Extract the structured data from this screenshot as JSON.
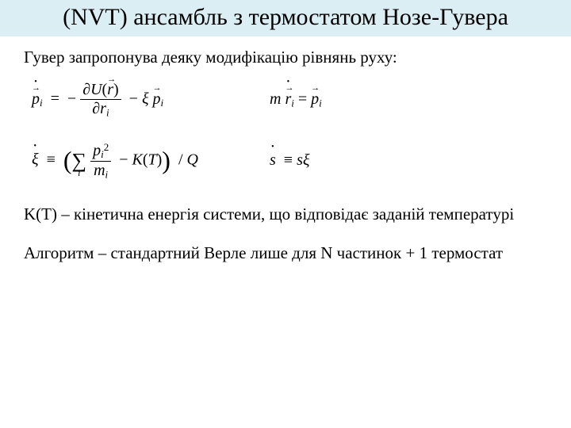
{
  "title": "(NVT) ансамбль з термостатом Нозе-Гувера",
  "intro": "Гувер запропонува деяку модифікацію рівнянь руху:",
  "note": "K(T) – кінетична енергія системи, що відповідає заданій температурі",
  "algo": "Алгоритм – стандартний Верле лише для N частинок + 1 термостат",
  "colors": {
    "titleBand": "#dbeef4",
    "background": "#ffffff",
    "text": "#000000"
  },
  "fonts": {
    "family": "Times New Roman",
    "titleSize": 30,
    "bodySize": 21,
    "eqSize": 20
  },
  "equations": {
    "row1": {
      "left": {
        "lhs": "p_dot_vec_i",
        "rhs_term1": {
          "type": "neg_partial_fraction",
          "num": "∂U(r_vec)",
          "den": "∂r_i"
        },
        "rhs_term2": {
          "type": "minus",
          "factor1": "ξ",
          "factor2": "p_vec_i"
        }
      },
      "right": {
        "lhs": "m r_dot_vec_i",
        "rhs": "p_vec_i"
      }
    },
    "row2": {
      "left": {
        "lhs": "ξ_dot",
        "rhs": "( Σ_i p_i^2 / m_i − K(T) ) / Q"
      },
      "right": {
        "lhs": "s_dot",
        "rhs": "s ξ"
      }
    },
    "symbols": {
      "p": "p",
      "r": "r",
      "m": "m",
      "U": "U",
      "xi": "ξ",
      "s": "s",
      "K": "K",
      "T": "T",
      "Q": "Q",
      "i": "i",
      "partial": "∂",
      "equiv": "≡",
      "eq": "=",
      "minus": "−",
      "sum": "∑",
      "dot": "•",
      "arrow_combining": " "
    }
  }
}
